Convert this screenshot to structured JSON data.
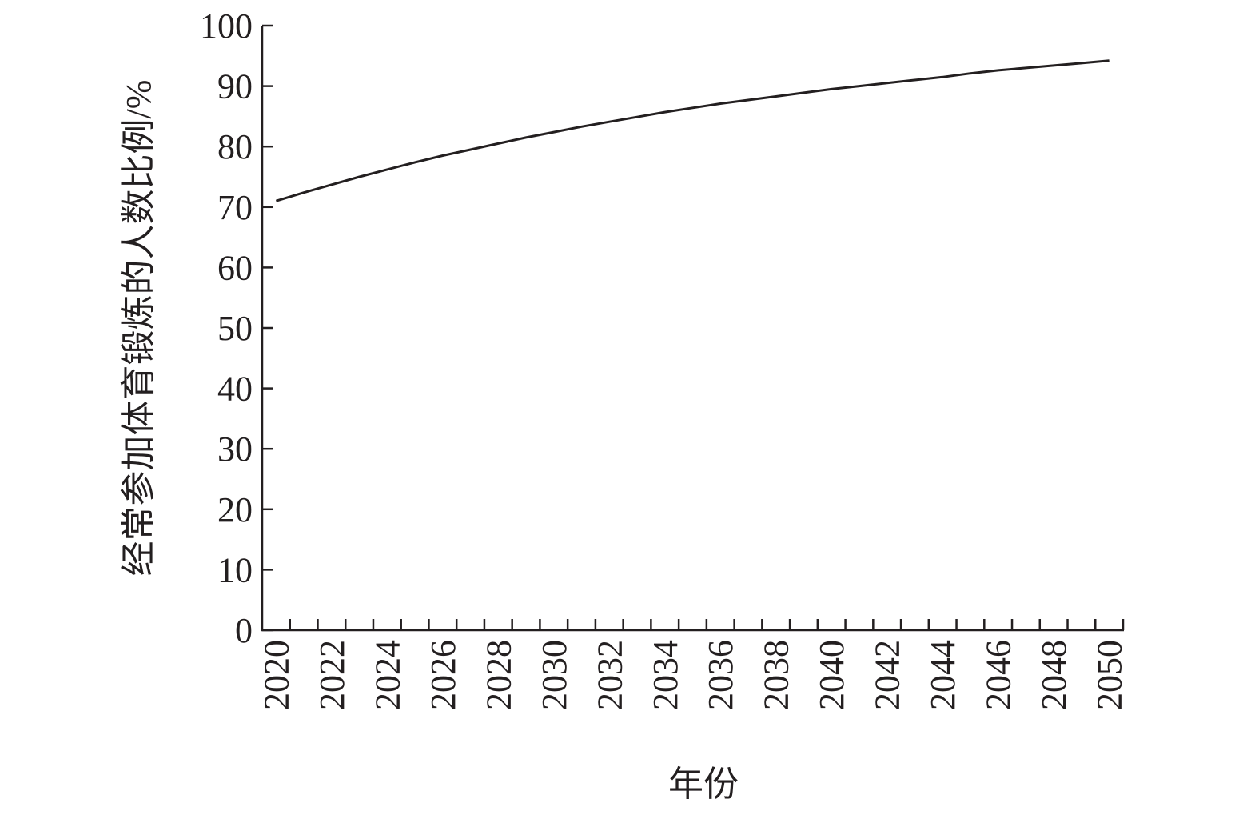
{
  "chart_data": {
    "type": "line",
    "x_label": "年份",
    "y_label": "经常参加体育锻炼的人数比例/%",
    "categories": [
      "2020",
      null,
      "2022",
      null,
      "2024",
      null,
      "2026",
      null,
      "2028",
      null,
      "2030",
      null,
      "2032",
      null,
      "2034",
      null,
      "2036",
      null,
      "2038",
      null,
      "2040",
      null,
      "2042",
      null,
      "2044",
      null,
      "2046",
      null,
      "2048",
      null,
      "2050"
    ],
    "values": [
      71.0,
      72.4,
      73.7,
      75.0,
      76.2,
      77.4,
      78.5,
      79.5,
      80.5,
      81.5,
      82.4,
      83.3,
      84.1,
      84.9,
      85.7,
      86.4,
      87.1,
      87.7,
      88.3,
      88.9,
      89.5,
      90.0,
      90.5,
      91.0,
      91.5,
      92.1,
      92.6,
      93.0,
      93.4,
      93.8,
      94.2
    ],
    "color": "#231f20",
    "ylim": [
      0,
      100
    ],
    "yticks": [
      0,
      10,
      20,
      30,
      40,
      50,
      60,
      70,
      80,
      90,
      100
    ],
    "grid": false
  }
}
